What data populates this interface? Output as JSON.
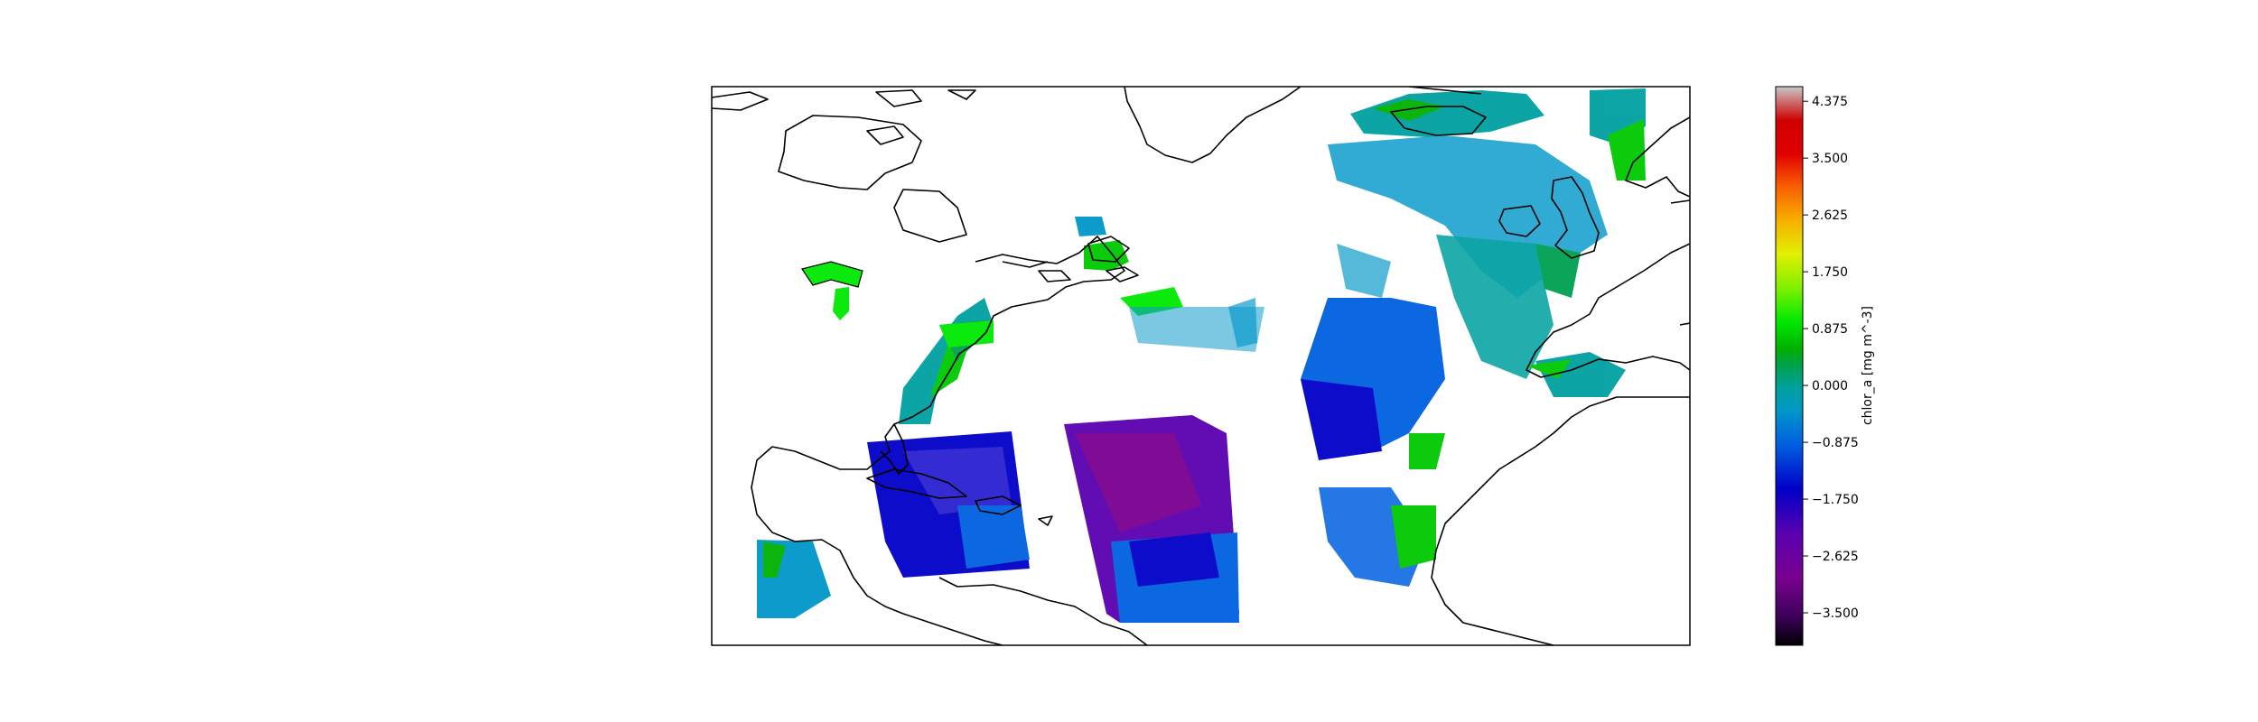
{
  "colorbar": {
    "label": "chlor_a [mg m^-3]",
    "min": -4.0,
    "max": 4.6,
    "ticks": [
      "4.375",
      "3.500",
      "2.625",
      "1.750",
      "0.875",
      "0.000",
      "−0.875",
      "−1.750",
      "−2.625",
      "−3.500"
    ],
    "tick_values": [
      4.375,
      3.5,
      2.625,
      1.75,
      0.875,
      0.0,
      -0.875,
      -1.75,
      -2.625,
      -3.5
    ],
    "colormap": [
      [
        "#000000",
        0.0
      ],
      [
        "#3a0058",
        0.05
      ],
      [
        "#7a0090",
        0.12
      ],
      [
        "#5a00b0",
        0.2
      ],
      [
        "#0000c8",
        0.28
      ],
      [
        "#0060e0",
        0.36
      ],
      [
        "#0096c8",
        0.42
      ],
      [
        "#00a0a0",
        0.46
      ],
      [
        "#00a050",
        0.5
      ],
      [
        "#00b000",
        0.53
      ],
      [
        "#00e800",
        0.58
      ],
      [
        "#80f000",
        0.64
      ],
      [
        "#e0f000",
        0.7
      ],
      [
        "#f8b000",
        0.76
      ],
      [
        "#f86000",
        0.82
      ],
      [
        "#e00000",
        0.88
      ],
      [
        "#d00000",
        0.94
      ],
      [
        "#c8c8c8",
        1.0
      ]
    ]
  },
  "map": {
    "extent": {
      "lon_min": -100,
      "lon_max": 0,
      "lat_min": 5,
      "lat_max": 70
    },
    "background": "#ffffff",
    "coastline_color": "#000000"
  }
}
